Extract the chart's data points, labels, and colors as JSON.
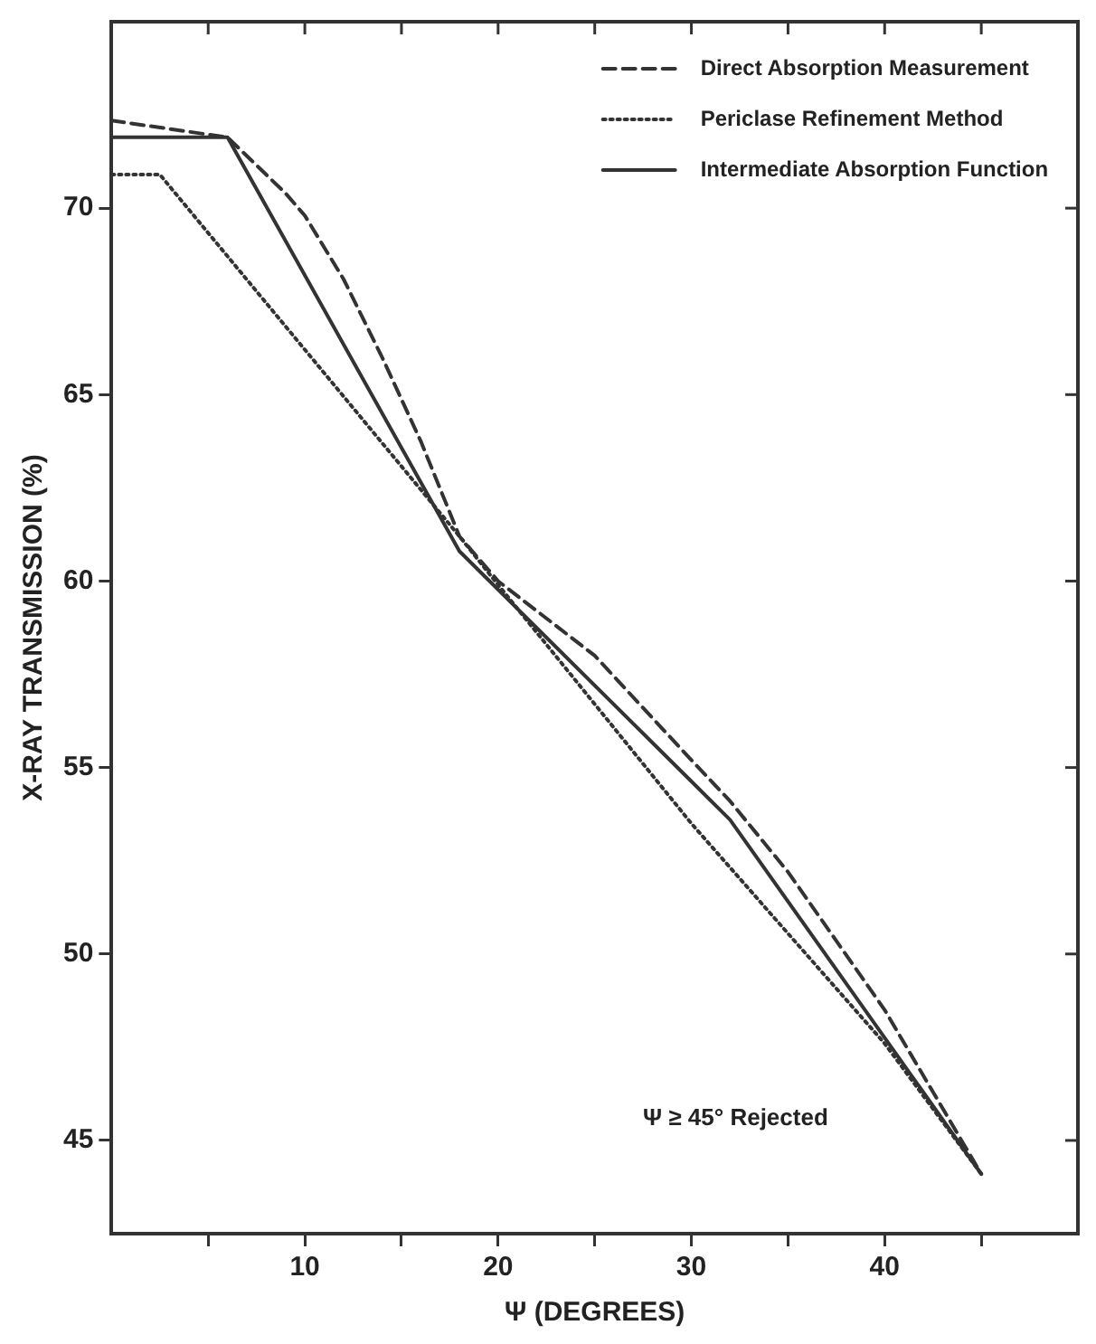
{
  "chart_data": {
    "type": "line",
    "xlabel": "Ψ (DEGREES)",
    "ylabel": "X-RAY TRANSMISSION (%)",
    "xlim": [
      0,
      50
    ],
    "ylim": [
      42.5,
      75
    ],
    "xticks": [
      {
        "value": 5,
        "label": null
      },
      10,
      {
        "value": 15,
        "label": null
      },
      20,
      {
        "value": 25,
        "label": null
      },
      30,
      {
        "value": 35,
        "label": null
      },
      40,
      {
        "value": 45,
        "label": null
      }
    ],
    "yticks": [
      45,
      50,
      55,
      60,
      65,
      70
    ],
    "grid": false,
    "legend": "top right",
    "marker": "none",
    "annotations": [
      "Ψ ≥ 45° Rejected"
    ],
    "series": [
      {
        "name": "Direct Absorption Measurement",
        "color": "#333333",
        "line_style": "dashed",
        "x": [
          0,
          6,
          9,
          10,
          12,
          14,
          16,
          18,
          20,
          25,
          30,
          32,
          35,
          40,
          45
        ],
        "values": [
          72.35,
          71.9,
          70.4,
          69.8,
          68.1,
          66.0,
          63.75,
          61.2,
          60.0,
          58.0,
          55.2,
          54.1,
          52.2,
          48.5,
          44.1
        ]
      },
      {
        "name": "Periclase Refinement Method",
        "color": "#333333",
        "line_style": "dotted",
        "x": [
          0,
          2.5,
          18,
          20,
          30,
          40,
          45
        ],
        "values": [
          70.9,
          70.9,
          61.2,
          59.9,
          53.5,
          47.6,
          44.1
        ]
      },
      {
        "name": "Intermediate Absorption Function",
        "color": "#333333",
        "line_style": "solid",
        "x": [
          0,
          6,
          18,
          32,
          45
        ],
        "values": [
          71.9,
          71.9,
          60.8,
          53.6,
          44.1
        ]
      }
    ]
  }
}
